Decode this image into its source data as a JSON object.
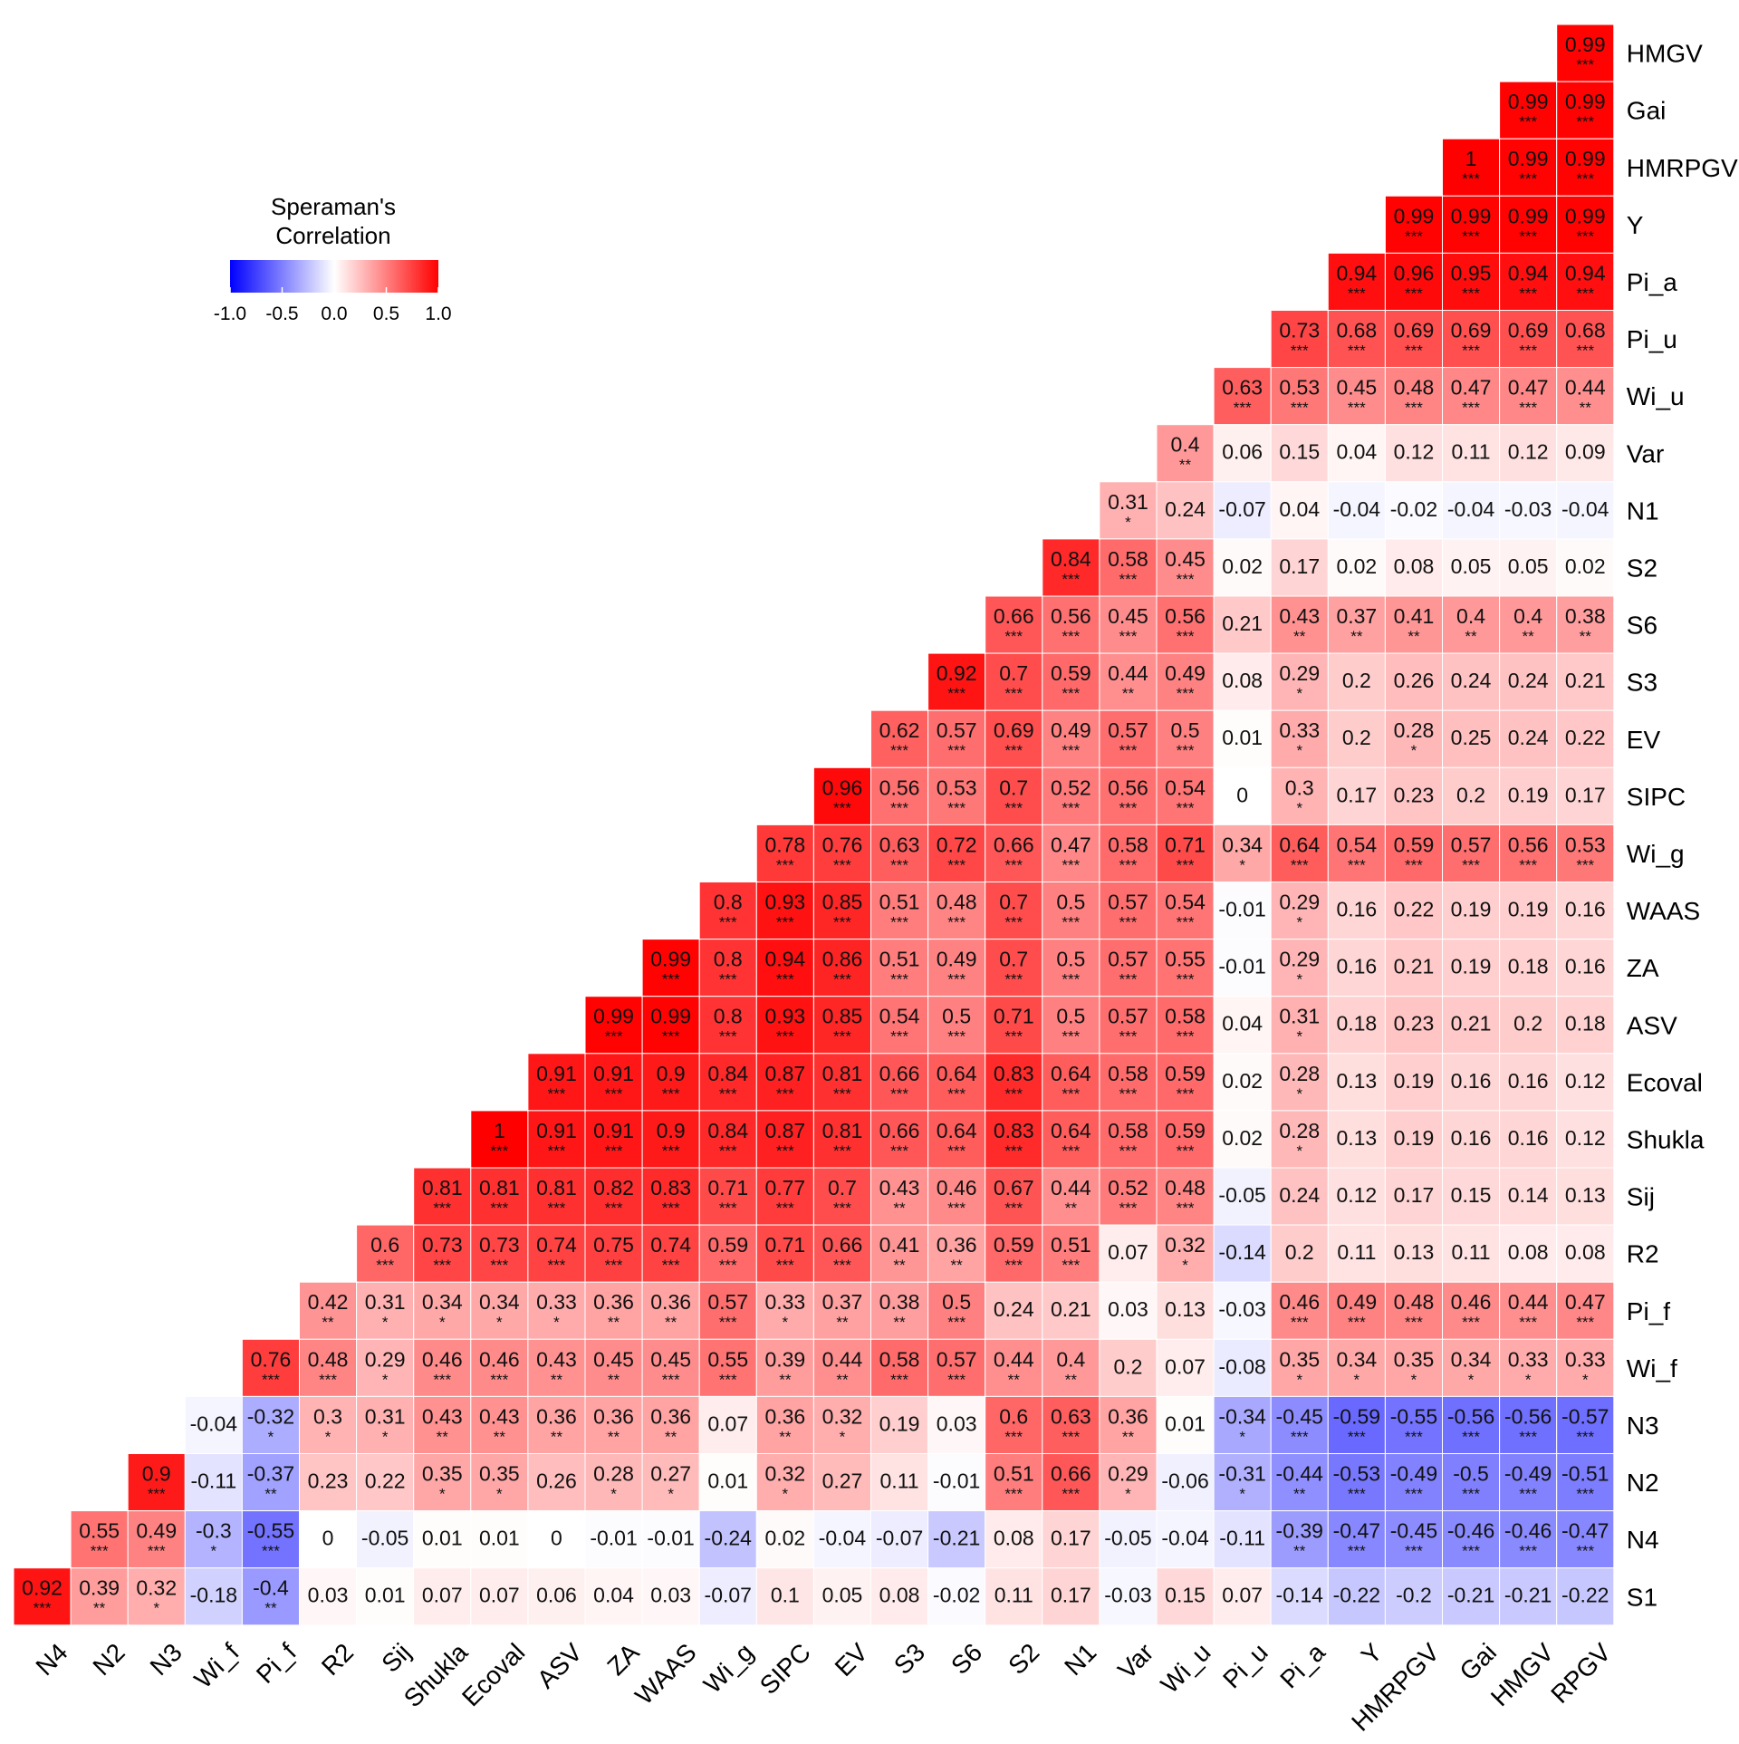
{
  "chart_data": {
    "type": "heatmap",
    "title": "",
    "xlabel": "",
    "ylabel": "",
    "color_low": "#0000ff",
    "color_mid": "#ffffff",
    "color_high": "#ff0000",
    "x_labels": [
      "N4",
      "N2",
      "N3",
      "Wi_f",
      "Pi_f",
      "R2",
      "Sij",
      "Shukla",
      "Ecoval",
      "ASV",
      "ZA",
      "WAAS",
      "Wi_g",
      "SIPC",
      "EV",
      "S3",
      "S6",
      "S2",
      "N1",
      "Var",
      "Wi_u",
      "Pi_u",
      "Pi_a",
      "Y",
      "HMRPGV",
      "Gai",
      "HMGV",
      "RPGV"
    ],
    "y_labels": [
      "HMGV",
      "Gai",
      "HMRPGV",
      "Y",
      "Pi_a",
      "Pi_u",
      "Wi_u",
      "Var",
      "N1",
      "S2",
      "S6",
      "S3",
      "EV",
      "SIPC",
      "Wi_g",
      "WAAS",
      "ZA",
      "ASV",
      "Ecoval",
      "Shukla",
      "Sij",
      "R2",
      "Pi_f",
      "Wi_f",
      "N3",
      "N2",
      "N4",
      "S1"
    ],
    "values": [
      [
        "0.99"
      ],
      [
        "0.99",
        "0.99"
      ],
      [
        "1",
        "0.99",
        "0.99"
      ],
      [
        "0.99",
        "0.99",
        "0.99",
        "0.99"
      ],
      [
        "0.94",
        "0.96",
        "0.95",
        "0.94",
        "0.94"
      ],
      [
        "0.73",
        "0.68",
        "0.69",
        "0.69",
        "0.69",
        "0.68"
      ],
      [
        "0.63",
        "0.53",
        "0.45",
        "0.48",
        "0.47",
        "0.47",
        "0.44"
      ],
      [
        "0.4",
        "0.06",
        "0.15",
        "0.04",
        "0.12",
        "0.11",
        "0.12",
        "0.09"
      ],
      [
        "0.31",
        "0.24",
        "-0.07",
        "0.04",
        "-0.04",
        "-0.02",
        "-0.04",
        "-0.03",
        "-0.04"
      ],
      [
        "0.84",
        "0.58",
        "0.45",
        "0.02",
        "0.17",
        "0.02",
        "0.08",
        "0.05",
        "0.05",
        "0.02"
      ],
      [
        "0.66",
        "0.56",
        "0.45",
        "0.56",
        "0.21",
        "0.43",
        "0.37",
        "0.41",
        "0.4",
        "0.4",
        "0.38"
      ],
      [
        "0.92",
        "0.7",
        "0.59",
        "0.44",
        "0.49",
        "0.08",
        "0.29",
        "0.2",
        "0.26",
        "0.24",
        "0.24",
        "0.21"
      ],
      [
        "0.62",
        "0.57",
        "0.69",
        "0.49",
        "0.57",
        "0.5",
        "0.01",
        "0.33",
        "0.2",
        "0.28",
        "0.25",
        "0.24",
        "0.22"
      ],
      [
        "0.96",
        "0.56",
        "0.53",
        "0.7",
        "0.52",
        "0.56",
        "0.54",
        "0",
        "0.3",
        "0.17",
        "0.23",
        "0.2",
        "0.19",
        "0.17"
      ],
      [
        "0.78",
        "0.76",
        "0.63",
        "0.72",
        "0.66",
        "0.47",
        "0.58",
        "0.71",
        "0.34",
        "0.64",
        "0.54",
        "0.59",
        "0.57",
        "0.56",
        "0.53"
      ],
      [
        "0.8",
        "0.93",
        "0.85",
        "0.51",
        "0.48",
        "0.7",
        "0.5",
        "0.57",
        "0.54",
        "-0.01",
        "0.29",
        "0.16",
        "0.22",
        "0.19",
        "0.19",
        "0.16"
      ],
      [
        "0.99",
        "0.8",
        "0.94",
        "0.86",
        "0.51",
        "0.49",
        "0.7",
        "0.5",
        "0.57",
        "0.55",
        "-0.01",
        "0.29",
        "0.16",
        "0.21",
        "0.19",
        "0.18",
        "0.16"
      ],
      [
        "0.99",
        "0.99",
        "0.8",
        "0.93",
        "0.85",
        "0.54",
        "0.5",
        "0.71",
        "0.5",
        "0.57",
        "0.58",
        "0.04",
        "0.31",
        "0.18",
        "0.23",
        "0.21",
        "0.2",
        "0.18"
      ],
      [
        "0.91",
        "0.91",
        "0.9",
        "0.84",
        "0.87",
        "0.81",
        "0.66",
        "0.64",
        "0.83",
        "0.64",
        "0.58",
        "0.59",
        "0.02",
        "0.28",
        "0.13",
        "0.19",
        "0.16",
        "0.16",
        "0.12"
      ],
      [
        "1",
        "0.91",
        "0.91",
        "0.9",
        "0.84",
        "0.87",
        "0.81",
        "0.66",
        "0.64",
        "0.83",
        "0.64",
        "0.58",
        "0.59",
        "0.02",
        "0.28",
        "0.13",
        "0.19",
        "0.16",
        "0.16",
        "0.12"
      ],
      [
        "0.81",
        "0.81",
        "0.81",
        "0.82",
        "0.83",
        "0.71",
        "0.77",
        "0.7",
        "0.43",
        "0.46",
        "0.67",
        "0.44",
        "0.52",
        "0.48",
        "-0.05",
        "0.24",
        "0.12",
        "0.17",
        "0.15",
        "0.14",
        "0.13"
      ],
      [
        "0.6",
        "0.73",
        "0.73",
        "0.74",
        "0.75",
        "0.74",
        "0.59",
        "0.71",
        "0.66",
        "0.41",
        "0.36",
        "0.59",
        "0.51",
        "0.07",
        "0.32",
        "-0.14",
        "0.2",
        "0.11",
        "0.13",
        "0.11",
        "0.08",
        "0.08"
      ],
      [
        "0.42",
        "0.31",
        "0.34",
        "0.34",
        "0.33",
        "0.36",
        "0.36",
        "0.57",
        "0.33",
        "0.37",
        "0.38",
        "0.5",
        "0.24",
        "0.21",
        "0.03",
        "0.13",
        "-0.03",
        "0.46",
        "0.49",
        "0.48",
        "0.46",
        "0.44",
        "0.47"
      ],
      [
        "0.76",
        "0.48",
        "0.29",
        "0.46",
        "0.46",
        "0.43",
        "0.45",
        "0.45",
        "0.55",
        "0.39",
        "0.44",
        "0.58",
        "0.57",
        "0.44",
        "0.4",
        "0.2",
        "0.07",
        "-0.08",
        "0.35",
        "0.34",
        "0.35",
        "0.34",
        "0.33",
        "0.33"
      ],
      [
        "-0.04",
        "-0.32",
        "0.3",
        "0.31",
        "0.43",
        "0.43",
        "0.36",
        "0.36",
        "0.36",
        "0.07",
        "0.36",
        "0.32",
        "0.19",
        "0.03",
        "0.6",
        "0.63",
        "0.36",
        "0.01",
        "-0.34",
        "-0.45",
        "-0.59",
        "-0.55",
        "-0.56",
        "-0.56",
        "-0.57"
      ],
      [
        "0.9",
        "-0.11",
        "-0.37",
        "0.23",
        "0.22",
        "0.35",
        "0.35",
        "0.26",
        "0.28",
        "0.27",
        "0.01",
        "0.32",
        "0.27",
        "0.11",
        "-0.01",
        "0.51",
        "0.66",
        "0.29",
        "-0.06",
        "-0.31",
        "-0.44",
        "-0.53",
        "-0.49",
        "-0.5",
        "-0.49",
        "-0.51"
      ],
      [
        "0.55",
        "0.49",
        "-0.3",
        "-0.55",
        "0",
        "-0.05",
        "0.01",
        "0.01",
        "0",
        "-0.01",
        "-0.01",
        "-0.24",
        "0.02",
        "-0.04",
        "-0.07",
        "-0.21",
        "0.08",
        "0.17",
        "-0.05",
        "-0.04",
        "-0.11",
        "-0.39",
        "-0.47",
        "-0.45",
        "-0.46",
        "-0.46",
        "-0.47"
      ],
      [
        "0.92",
        "0.39",
        "0.32",
        "-0.18",
        "-0.4",
        "0.03",
        "0.01",
        "0.07",
        "0.07",
        "0.06",
        "0.04",
        "0.03",
        "-0.07",
        "0.1",
        "0.05",
        "0.08",
        "-0.02",
        "0.11",
        "0.17",
        "-0.03",
        "0.15",
        "0.07",
        "-0.14",
        "-0.22",
        "-0.2",
        "-0.21",
        "-0.21",
        "-0.22"
      ]
    ],
    "significance": [
      [
        "***"
      ],
      [
        "***",
        "***"
      ],
      [
        "***",
        "***",
        "***"
      ],
      [
        "***",
        "***",
        "***",
        "***"
      ],
      [
        "***",
        "***",
        "***",
        "***",
        "***"
      ],
      [
        "***",
        "***",
        "***",
        "***",
        "***",
        "***"
      ],
      [
        "***",
        "***",
        "***",
        "***",
        "***",
        "***",
        "**"
      ],
      [
        "**",
        "",
        "",
        "",
        "",
        "",
        "",
        ""
      ],
      [
        "*",
        "",
        "",
        "",
        "",
        "",
        "",
        "",
        ""
      ],
      [
        "***",
        "***",
        "***",
        "",
        "",
        "",
        "",
        "",
        "",
        ""
      ],
      [
        "***",
        "***",
        "***",
        "***",
        "",
        "**",
        "**",
        "**",
        "**",
        "**",
        "**"
      ],
      [
        "***",
        "***",
        "***",
        "**",
        "***",
        "",
        "*",
        "",
        "",
        "",
        "",
        ""
      ],
      [
        "***",
        "***",
        "***",
        "***",
        "***",
        "***",
        "",
        "*",
        "",
        "*",
        "",
        "",
        ""
      ],
      [
        "***",
        "***",
        "***",
        "***",
        "***",
        "***",
        "***",
        "",
        "*",
        "",
        "",
        "",
        "",
        ""
      ],
      [
        "***",
        "***",
        "***",
        "***",
        "***",
        "***",
        "***",
        "***",
        "*",
        "***",
        "***",
        "***",
        "***",
        "***",
        "***"
      ],
      [
        "***",
        "***",
        "***",
        "***",
        "***",
        "***",
        "***",
        "***",
        "***",
        "",
        "*",
        "",
        "",
        "",
        "",
        ""
      ],
      [
        "***",
        "***",
        "***",
        "***",
        "***",
        "***",
        "***",
        "***",
        "***",
        "***",
        "",
        "*",
        "",
        "",
        "",
        "",
        ""
      ],
      [
        "***",
        "***",
        "***",
        "***",
        "***",
        "***",
        "***",
        "***",
        "***",
        "***",
        "***",
        "",
        "*",
        "",
        "",
        "",
        "",
        ""
      ],
      [
        "***",
        "***",
        "***",
        "***",
        "***",
        "***",
        "***",
        "***",
        "***",
        "***",
        "***",
        "***",
        "",
        "*",
        "",
        "",
        "",
        "",
        ""
      ],
      [
        "***",
        "***",
        "***",
        "***",
        "***",
        "***",
        "***",
        "***",
        "***",
        "***",
        "***",
        "***",
        "***",
        "",
        "*",
        "",
        "",
        "",
        "",
        ""
      ],
      [
        "***",
        "***",
        "***",
        "***",
        "***",
        "***",
        "***",
        "***",
        "**",
        "***",
        "***",
        "**",
        "***",
        "***",
        "",
        "",
        "",
        "",
        "",
        "",
        ""
      ],
      [
        "***",
        "***",
        "***",
        "***",
        "***",
        "***",
        "***",
        "***",
        "***",
        "**",
        "**",
        "***",
        "***",
        "",
        "*",
        "",
        "",
        "",
        "",
        "",
        "",
        ""
      ],
      [
        "**",
        "*",
        "*",
        "*",
        "*",
        "**",
        "**",
        "***",
        "*",
        "**",
        "**",
        "***",
        "",
        "",
        "",
        "",
        "",
        "***",
        "***",
        "***",
        "***",
        "***",
        "***"
      ],
      [
        "***",
        "***",
        "*",
        "***",
        "***",
        "**",
        "**",
        "***",
        "***",
        "**",
        "**",
        "***",
        "***",
        "**",
        "**",
        "",
        "",
        "",
        "*",
        "*",
        "*",
        "*",
        "*",
        "*"
      ],
      [
        "",
        "*",
        "*",
        "*",
        "**",
        "**",
        "**",
        "**",
        "**",
        "",
        "**",
        "*",
        "",
        "",
        "***",
        "***",
        "**",
        "",
        "*",
        "***",
        "***",
        "***",
        "***",
        "***",
        "***"
      ],
      [
        "***",
        "",
        "**",
        "",
        "",
        "*",
        "*",
        "",
        "*",
        "*",
        "",
        "*",
        "",
        "",
        "",
        "***",
        "***",
        "*",
        "",
        "*",
        "**",
        "***",
        "***",
        "***",
        "***",
        "***"
      ],
      [
        "***",
        "***",
        "*",
        "***",
        "",
        "",
        "",
        "",
        "",
        "",
        "",
        "",
        "",
        "",
        "",
        "",
        "",
        "",
        "",
        "",
        "",
        "**",
        "***",
        "***",
        "***",
        "***",
        "***"
      ],
      [
        "***",
        "**",
        "*",
        "",
        "**",
        "",
        "",
        "",
        "",
        "",
        "",
        "",
        "",
        "",
        "",
        "",
        "",
        "",
        "",
        "",
        "",
        "",
        "",
        "",
        "",
        "",
        "",
        ""
      ]
    ],
    "legend": {
      "title_line1": "Speraman's",
      "title_line2": "Correlation",
      "ticks": [
        "-1.0",
        "-0.5",
        "0.0",
        "0.5",
        "1.0"
      ],
      "tick_values": [
        -1.0,
        -0.5,
        0.0,
        0.5,
        1.0
      ],
      "range": [
        -1,
        1
      ],
      "placement": "top-left"
    },
    "grid": true
  }
}
